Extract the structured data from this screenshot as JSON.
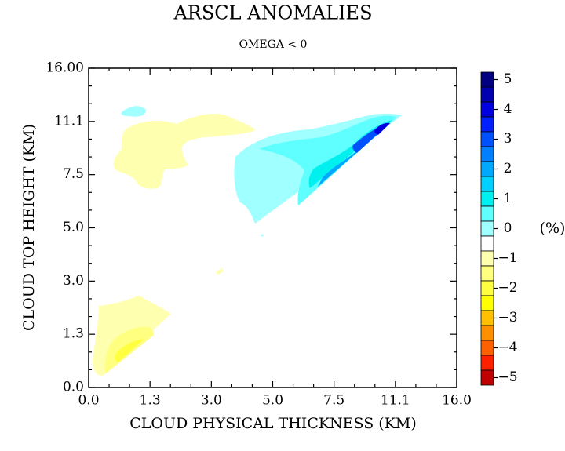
{
  "chart_data": {
    "type": "contour",
    "title": "ARSCL ANOMALIES",
    "subtitle": "OMEGA < 0",
    "x_label": "CLOUD PHYSICAL THICKNESS (KM)",
    "y_label": "CLOUD TOP HEIGHT (KM)",
    "x_tick_labels": [
      "0.0",
      "1.3",
      "3.0",
      "5.0",
      "7.5",
      "11.1",
      "16.0"
    ],
    "y_tick_labels": [
      "0.0",
      "1.3",
      "3.0",
      "5.0",
      "7.5",
      "11.1",
      "16.00"
    ],
    "colorbar": {
      "unit": "(%)",
      "colors": [
        "#000080",
        "#0000b0",
        "#0000e0",
        "#0020ff",
        "#0050ff",
        "#0080ff",
        "#00a8ff",
        "#00d0ff",
        "#00f0f0",
        "#60ffff",
        "#a0ffff",
        "#ffffff",
        "#ffffb0",
        "#ffff80",
        "#ffff40",
        "#ffff00",
        "#ffc000",
        "#ff9000",
        "#ff6000",
        "#ff2000",
        "#c00000"
      ],
      "labels": [
        "5",
        "4",
        "3",
        "2",
        "1",
        "0",
        "−1",
        "−2",
        "−3",
        "−4",
        "−5"
      ]
    }
  }
}
